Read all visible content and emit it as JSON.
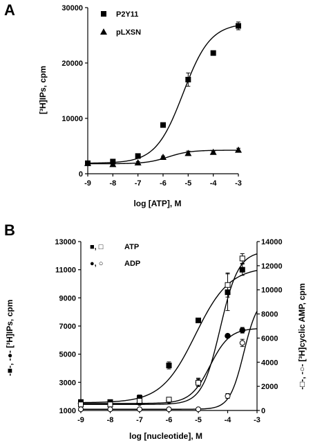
{
  "panel_a": {
    "letter": "A",
    "chart_data": {
      "type": "scatter",
      "xlabel": "log [ATP], M",
      "ylabel": "[³H]IPs, cpm",
      "xlim": [
        -9,
        -3
      ],
      "ylim": [
        0,
        30000
      ],
      "x_ticks": [
        -9,
        -8,
        -7,
        -6,
        -5,
        -4,
        -3
      ],
      "y_ticks": [
        0,
        10000,
        20000,
        30000
      ],
      "legend_position": "top-left",
      "series": [
        {
          "name": "P2Y11",
          "marker": "filled-square",
          "x": [
            -9,
            -8,
            -7,
            -6,
            -5,
            -4,
            -3
          ],
          "y": [
            1900,
            2200,
            3200,
            8800,
            17000,
            21800,
            26700
          ],
          "err": [
            300,
            300,
            300,
            400,
            1200,
            300,
            700
          ],
          "fit": {
            "bottom": 1900,
            "top": 27200,
            "ec50_log": -5.2,
            "hill": 0.8
          }
        },
        {
          "name": "pLXSN",
          "marker": "filled-triangle",
          "x": [
            -9,
            -8,
            -7,
            -6,
            -5,
            -4,
            -3
          ],
          "y": [
            1900,
            1700,
            2000,
            3000,
            3700,
            3900,
            4300
          ],
          "err": [
            200,
            200,
            200,
            200,
            400,
            200,
            300
          ],
          "fit": {
            "bottom": 1800,
            "top": 4250,
            "ec50_log": -5.8,
            "hill": 1.0
          }
        }
      ]
    }
  },
  "panel_b": {
    "letter": "B",
    "chart_data": {
      "type": "scatter",
      "xlabel": "log [nucleotide], M",
      "ylabel_left": "-■-, -●- [³H]IPs, cpm",
      "ylabel_right": "-□-, -○- [³H]cyclic AMP, cpm",
      "xlim": [
        -9,
        -3
      ],
      "ylim_left": [
        1000,
        13000
      ],
      "ylim_right": [
        0,
        14000
      ],
      "x_ticks": [
        -9,
        -8,
        -7,
        -6,
        -5,
        -4,
        -3
      ],
      "y_ticks_left": [
        1000,
        3000,
        5000,
        7000,
        9000,
        11000,
        13000
      ],
      "y_ticks_right": [
        0,
        2000,
        4000,
        6000,
        8000,
        10000,
        12000,
        14000
      ],
      "legend_position": "top-left",
      "legend": [
        {
          "markers": "■, □",
          "label": "ATP"
        },
        {
          "markers": "●, ○",
          "label": "ADP"
        }
      ],
      "series": [
        {
          "name": "ATP",
          "measure": "[³H]IPs",
          "axis": "left",
          "marker": "filled-square",
          "x": [
            -9,
            -8,
            -7,
            -6,
            -5,
            -4,
            -3.5
          ],
          "y": [
            1600,
            1600,
            1900,
            4200,
            7400,
            9400,
            11000
          ],
          "err": [
            0,
            0,
            200,
            250,
            0,
            1300,
            400
          ],
          "fit": {
            "bottom": 1550,
            "top": 11200,
            "ec50_log": -5.1,
            "hill": 0.75
          }
        },
        {
          "name": "ADP",
          "measure": "[³H]IPs",
          "axis": "left",
          "marker": "filled-circle",
          "x": [
            -9,
            -8,
            -7,
            -6,
            -5,
            -4,
            -3.5
          ],
          "y": [
            1500,
            1500,
            1550,
            1700,
            3000,
            6300,
            6700
          ],
          "err": [
            0,
            0,
            0,
            0,
            300,
            0,
            200
          ],
          "fit": {
            "bottom": 1500,
            "top": 6850,
            "ec50_log": -4.6,
            "hill": 1.3
          }
        },
        {
          "name": "ATP",
          "measure": "[³H]cyclic AMP",
          "axis": "right",
          "marker": "open-square",
          "x": [
            -9,
            -8,
            -7,
            -6,
            -5,
            -4,
            -3.5
          ],
          "y": [
            500,
            500,
            800,
            900,
            2300,
            10400,
            12600
          ],
          "err": [
            0,
            0,
            0,
            0,
            300,
            1000,
            400
          ],
          "fit": {
            "bottom": 500,
            "top": 13200,
            "ec50_log": -4.25,
            "hill": 1.4
          }
        },
        {
          "name": "ADP",
          "measure": "[³H]cyclic AMP",
          "axis": "right",
          "marker": "open-circle",
          "x": [
            -9,
            -8,
            -7,
            -6,
            -5,
            -4,
            -3.5
          ],
          "y": [
            100,
            100,
            100,
            100,
            100,
            1200,
            5600
          ],
          "err": [
            0,
            0,
            0,
            0,
            0,
            200,
            300
          ],
          "fit": {
            "bottom": 100,
            "top": 9500,
            "ec50_log": -3.45,
            "hill": 1.8
          }
        }
      ]
    }
  }
}
